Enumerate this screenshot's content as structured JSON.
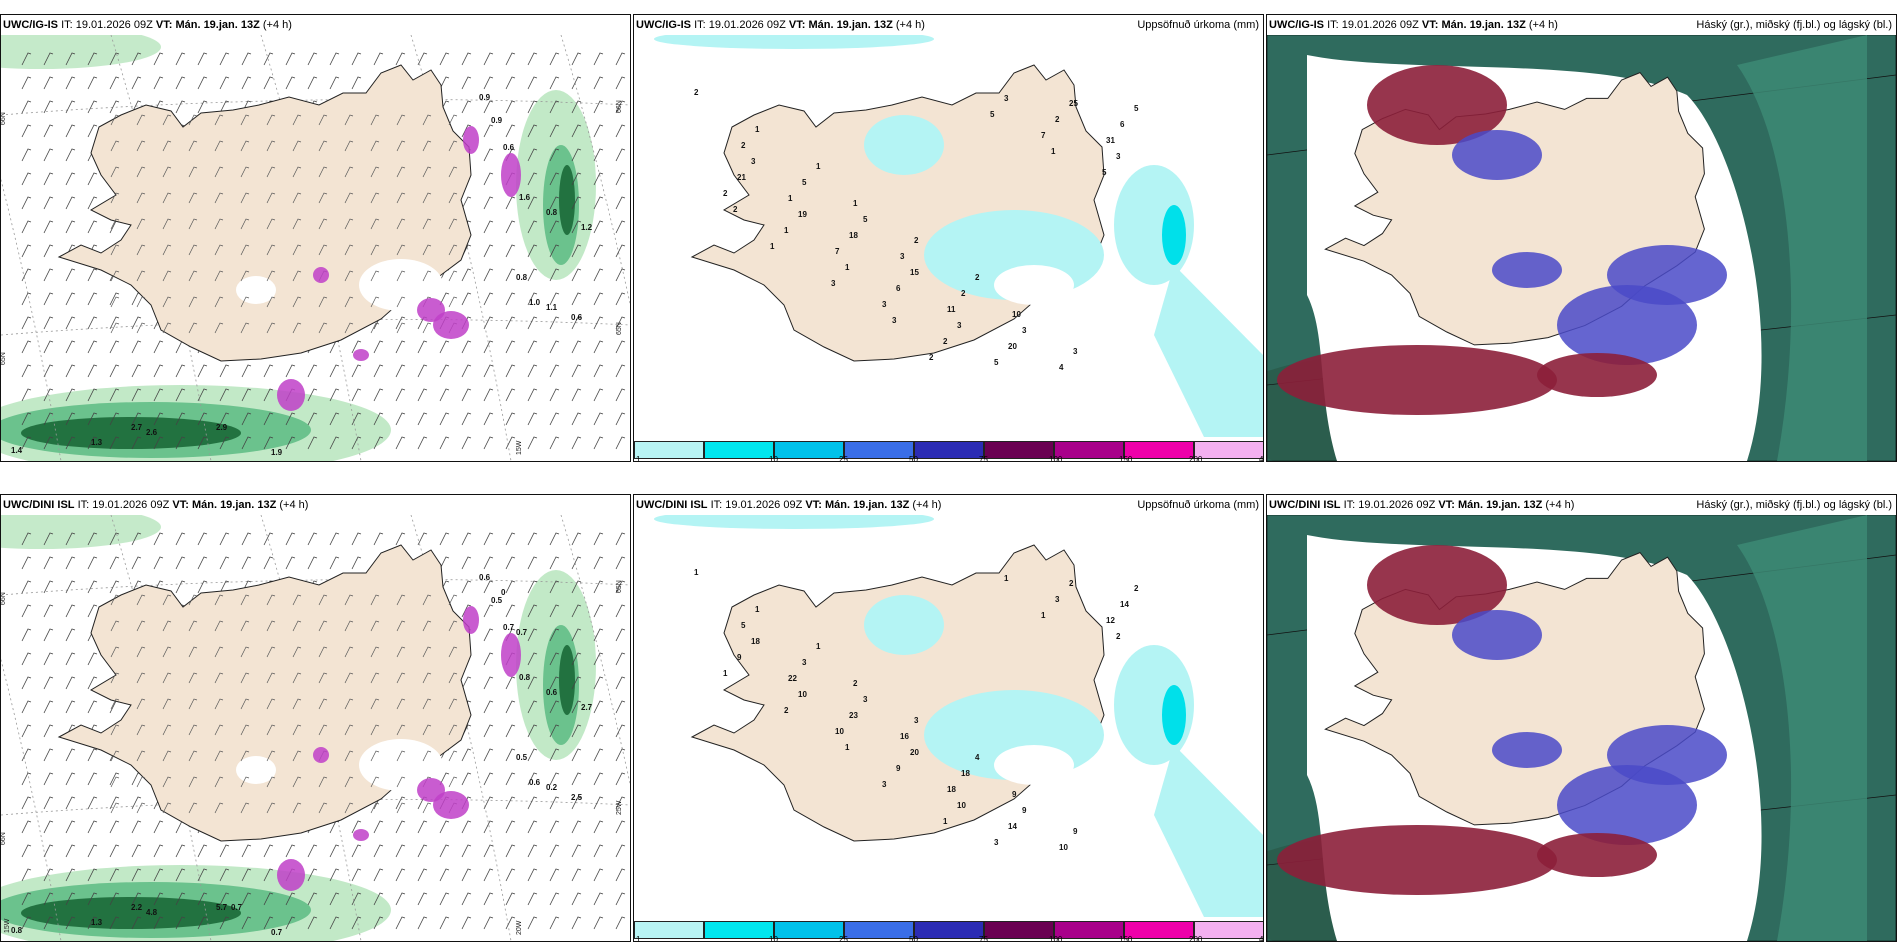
{
  "panels": [
    {
      "model": "UWC/IG-IS",
      "it_label": "IT:",
      "it": "19.01.2026 09Z",
      "vt_label": "VT:",
      "vt": "Mán. 19.jan. 13Z",
      "lead": "(+4 h)",
      "title_right": "",
      "wind_labels": [
        "0.9",
        "0.9",
        "0.6",
        "1.6",
        "0.8",
        "1.0",
        "1.1",
        "0.6",
        "2.7",
        "1.3",
        "0.8",
        "1.2",
        "2.6",
        "2.9",
        "1.9",
        "1.4"
      ],
      "axis_labels": [
        "66N",
        "66N",
        "65N",
        "65N",
        "15W"
      ]
    },
    {
      "model": "UWC/IG-IS",
      "it_label": "IT:",
      "it": "19.01.2026 09Z",
      "vt_label": "VT:",
      "vt": "Mán. 19.jan. 13Z",
      "lead": "(+4 h)",
      "title_right": "Uppsöfnuð úrkoma (mm)",
      "precip_labels": [
        "2",
        "1",
        "1",
        "1",
        "2",
        "2",
        "10",
        "3",
        "5",
        "2",
        "5",
        "5",
        "3",
        "2",
        "3",
        "4",
        "6",
        "3",
        "1",
        "18",
        "15",
        "11",
        "20",
        "25",
        "31",
        "21",
        "19",
        "7",
        "6",
        "3",
        "5",
        "2",
        "3",
        "2",
        "1",
        "1",
        "3",
        "2",
        "3",
        "7",
        "5",
        "2",
        "1",
        "3",
        "3",
        "2",
        "5",
        "1"
      ]
    },
    {
      "model": "UWC/IG-IS",
      "it_label": "IT:",
      "it": "19.01.2026 09Z",
      "vt_label": "VT:",
      "vt": "Mán. 19.jan. 13Z",
      "lead": "(+4 h)",
      "title_right": "Háský (gr.), miðský (fj.bl.) og lágský (bl.)"
    },
    {
      "model": "UWC/DINI ISL",
      "it_label": "IT:",
      "it": "19.01.2026 09Z",
      "vt_label": "VT:",
      "vt": "Mán. 19.jan. 13Z",
      "lead": "(+4 h)",
      "title_right": "",
      "wind_labels": [
        "0.6",
        "0.5",
        "0.7",
        "0.8",
        "0.5",
        "0.6",
        "0.2",
        "2.5",
        "2.2",
        "1.3",
        "0.6",
        "2.7",
        "4.8",
        "5.7",
        "0.7",
        "0.8",
        "0.7",
        "0.7",
        "0"
      ],
      "axis_labels": [
        "66N",
        "65N",
        "66N",
        "25W",
        "20W",
        "15W"
      ]
    },
    {
      "model": "UWC/DINI ISL",
      "it_label": "IT:",
      "it": "19.01.2026 09Z",
      "vt_label": "VT:",
      "vt": "Mán. 19.jan. 13Z",
      "lead": "(+4 h)",
      "title_right": "Uppsöfnuð úrkoma (mm)",
      "precip_labels": [
        "1",
        "1",
        "1",
        "2",
        "3",
        "4",
        "9",
        "9",
        "2",
        "5",
        "3",
        "3",
        "16",
        "18",
        "9",
        "10",
        "14",
        "18",
        "22",
        "23",
        "20",
        "18",
        "14",
        "2",
        "12",
        "9",
        "10",
        "10",
        "9",
        "10",
        "3",
        "3",
        "2",
        "1",
        "2",
        "1",
        "3",
        "1",
        "1",
        "1"
      ]
    },
    {
      "model": "UWC/DINI ISL",
      "it_label": "IT:",
      "it": "19.01.2026 09Z",
      "vt_label": "VT:",
      "vt": "Mán. 19.jan. 13Z",
      "lead": "(+4 h)",
      "title_right": "Háský (gr.), miðský (fj.bl.) og lágský (bl.)"
    }
  ],
  "legend": {
    "ticks": [
      "1",
      "10",
      "25",
      "50",
      "75",
      "100",
      "150",
      "200",
      "400"
    ],
    "colors": [
      "#b8f4f4",
      "#00e6ee",
      "#00c2ea",
      "#3a6ee8",
      "#2c2cb4",
      "#6a0052",
      "#a8008a",
      "#ee00aa",
      "#f4b0f0"
    ]
  },
  "colors": {
    "land": "#f3e4d3",
    "coast": "#222222",
    "green_light": "#bfe8c4",
    "green_mid": "#66c08a",
    "green_dark": "#1f6e3c",
    "magenta": "#c040c8",
    "cloud_high": "#2f6b5e",
    "cloud_mid": "#4a4ac8",
    "cloud_low": "#8c1f3a",
    "precip": "#b4f4f4"
  }
}
